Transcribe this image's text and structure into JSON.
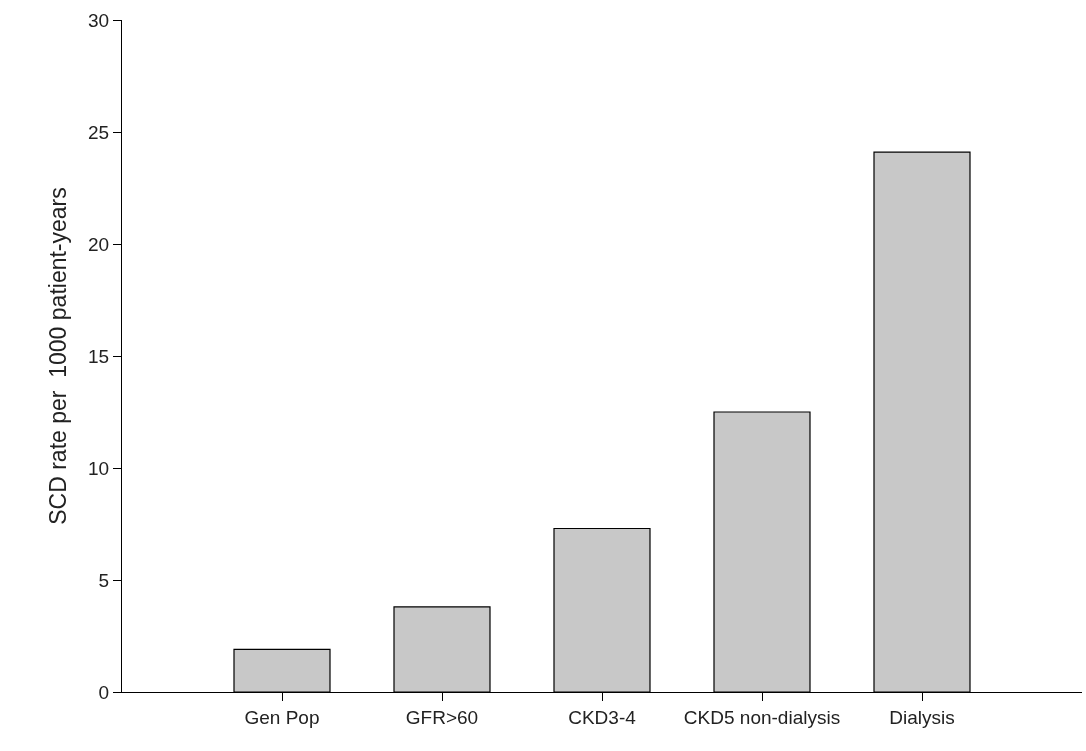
{
  "chart_data": {
    "type": "bar",
    "ylabel": "SCD rate per  1000 patient-years",
    "categories": [
      "Gen Pop",
      "GFR>60",
      "CKD3-4",
      "CKD5 non-dialysis",
      "Dialysis"
    ],
    "values": [
      1.9,
      3.8,
      7.3,
      12.5,
      24.1
    ],
    "color": "#c8c8c8",
    "ylim": [
      0,
      30
    ],
    "yticks": [
      0,
      5,
      10,
      15,
      20,
      25,
      30
    ],
    "grid": false
  }
}
